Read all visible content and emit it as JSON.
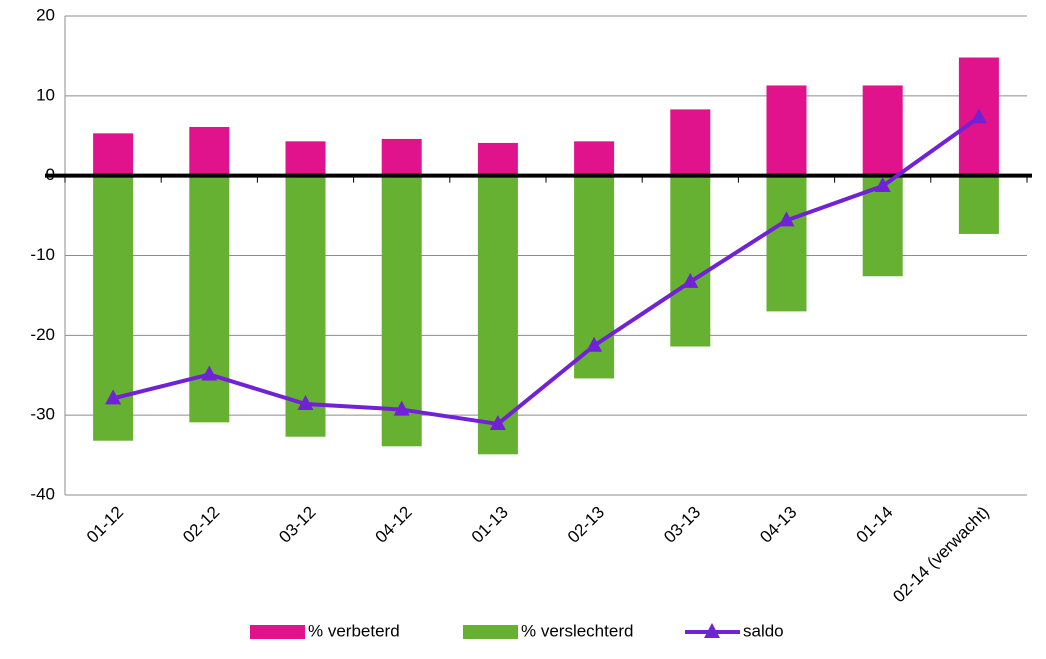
{
  "chart_data": {
    "type": "bar",
    "categories": [
      "01-12",
      "02-12",
      "03-12",
      "04-12",
      "01-13",
      "02-13",
      "03-13",
      "04-13",
      "01-14",
      "02-14 (verwacht)"
    ],
    "series": [
      {
        "name": "% verbeterd",
        "color": "#e0128c",
        "values": [
          5.3,
          6.1,
          4.3,
          4.6,
          4.1,
          4.3,
          8.3,
          11.3,
          11.3,
          14.8
        ]
      },
      {
        "name": "% verslechterd",
        "color": "#66b032",
        "values": [
          -33.2,
          -30.9,
          -32.7,
          -33.9,
          -34.9,
          -25.4,
          -21.4,
          -17.0,
          -12.6,
          -7.3
        ]
      },
      {
        "name": "saldo",
        "color": "#7121d6",
        "type": "line",
        "values": [
          -27.9,
          -24.9,
          -28.6,
          -29.3,
          -31.1,
          -21.3,
          -13.3,
          -5.6,
          -1.3,
          7.3
        ]
      }
    ],
    "ylim": [
      -40,
      20
    ],
    "yticks": [
      -40,
      -30,
      -20,
      -10,
      0,
      10,
      20
    ],
    "grid": true,
    "legend": "bottom"
  }
}
